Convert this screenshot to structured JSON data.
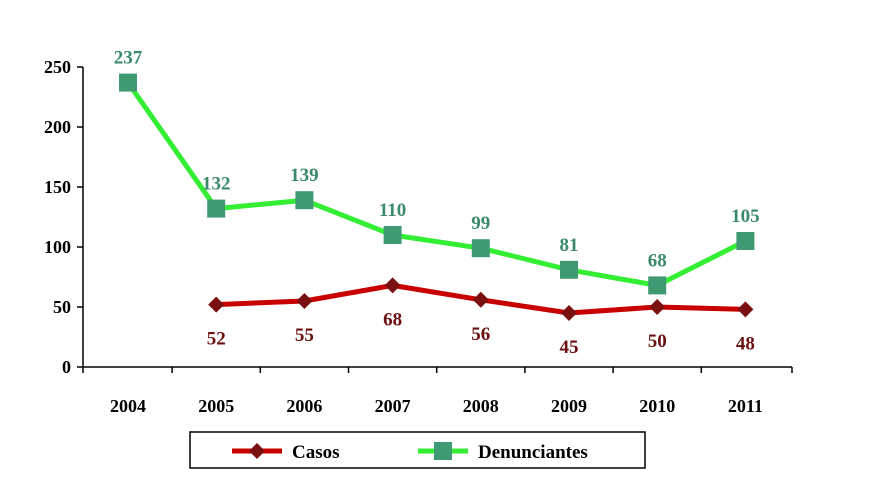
{
  "chart_data": {
    "type": "line",
    "categories": [
      "2004",
      "2005",
      "2006",
      "2007",
      "2008",
      "2009",
      "2010",
      "2011"
    ],
    "series": [
      {
        "name": "Casos",
        "values": [
          null,
          52,
          55,
          68,
          56,
          45,
          50,
          48
        ],
        "labels": [
          "",
          "52",
          "55",
          "68",
          "56",
          "45",
          "50",
          "48"
        ],
        "color": "#c80000",
        "label_color": "#6b1010",
        "marker": "diamond",
        "marker_color": "#7a1010"
      },
      {
        "name": "Denunciantes",
        "values": [
          237,
          132,
          139,
          110,
          99,
          81,
          68,
          105
        ],
        "labels": [
          "237",
          "132",
          "139",
          "110",
          "99",
          "81",
          "68",
          "105"
        ],
        "color": "#33ee33",
        "label_color": "#3a8a6a",
        "marker": "square",
        "marker_color": "#3f9a74"
      }
    ],
    "y_ticks": [
      "0",
      "50",
      "100",
      "150",
      "200",
      "250"
    ],
    "ylim": [
      0,
      250
    ],
    "grid": false,
    "legend": "bottom"
  }
}
